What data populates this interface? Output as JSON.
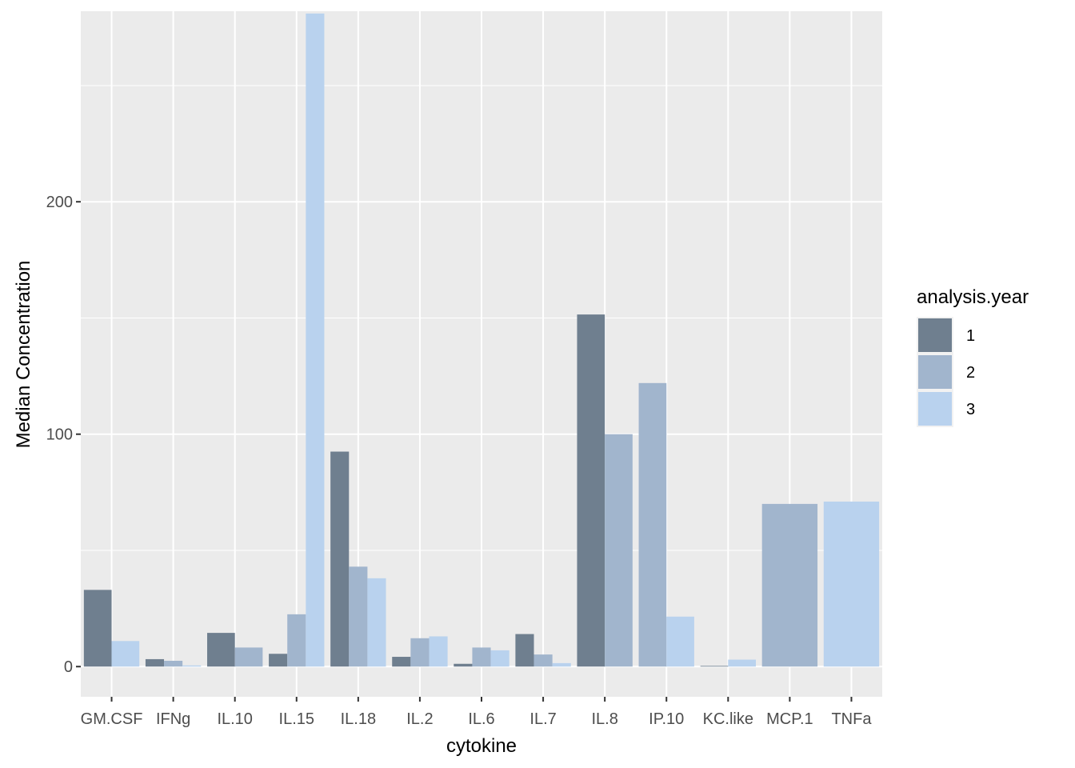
{
  "chart_data": {
    "type": "bar",
    "xlabel": "cytokine",
    "ylabel": "Median Concentration",
    "ylim": [
      -13,
      282
    ],
    "yticks": [
      0,
      100,
      200
    ],
    "grid": true,
    "legend": {
      "title": "analysis.year",
      "position": "right"
    },
    "categories": [
      "GM.CSF",
      "IFNg",
      "IL.10",
      "IL.15",
      "IL.18",
      "IL.2",
      "IL.6",
      "IL.7",
      "IL.8",
      "IP.10",
      "KC.like",
      "MCP.1",
      "TNFa"
    ],
    "series": [
      {
        "name": "1",
        "color": "#6f7f8f"
      },
      {
        "name": "2",
        "color": "#a1b5cd"
      },
      {
        "name": "3",
        "color": "#b9d2ee"
      }
    ],
    "bars": [
      {
        "category": "GM.CSF",
        "values": [
          {
            "series": "1",
            "value": 33
          },
          {
            "series": "3",
            "value": 11
          }
        ]
      },
      {
        "category": "IFNg",
        "values": [
          {
            "series": "1",
            "value": 3.2
          },
          {
            "series": "2",
            "value": 2.5
          },
          {
            "series": "3",
            "value": 0.5
          }
        ]
      },
      {
        "category": "IL.10",
        "values": [
          {
            "series": "1",
            "value": 14.5
          },
          {
            "series": "2",
            "value": 8.2
          }
        ]
      },
      {
        "category": "IL.15",
        "values": [
          {
            "series": "1",
            "value": 5.5
          },
          {
            "series": "2",
            "value": 22.5
          },
          {
            "series": "3",
            "value": 281
          }
        ]
      },
      {
        "category": "IL.18",
        "values": [
          {
            "series": "1",
            "value": 92.5
          },
          {
            "series": "2",
            "value": 43
          },
          {
            "series": "3",
            "value": 38
          }
        ]
      },
      {
        "category": "IL.2",
        "values": [
          {
            "series": "1",
            "value": 4.2
          },
          {
            "series": "2",
            "value": 12.2
          },
          {
            "series": "3",
            "value": 13
          }
        ]
      },
      {
        "category": "IL.6",
        "values": [
          {
            "series": "1",
            "value": 1.2
          },
          {
            "series": "2",
            "value": 8.2
          },
          {
            "series": "3",
            "value": 7
          }
        ]
      },
      {
        "category": "IL.7",
        "values": [
          {
            "series": "1",
            "value": 14
          },
          {
            "series": "2",
            "value": 5.2
          },
          {
            "series": "3",
            "value": 1.5
          }
        ]
      },
      {
        "category": "IL.8",
        "values": [
          {
            "series": "1",
            "value": 151.5
          },
          {
            "series": "2",
            "value": 100
          }
        ]
      },
      {
        "category": "IP.10",
        "values": [
          {
            "series": "2",
            "value": 122
          },
          {
            "series": "3",
            "value": 21.5
          }
        ]
      },
      {
        "category": "KC.like",
        "values": [
          {
            "series": "1",
            "value": 0.3
          },
          {
            "series": "3",
            "value": 3
          }
        ]
      },
      {
        "category": "MCP.1",
        "values": [
          {
            "series": "2",
            "value": 70
          }
        ]
      },
      {
        "category": "TNFa",
        "values": [
          {
            "series": "3",
            "value": 71
          }
        ]
      }
    ]
  }
}
